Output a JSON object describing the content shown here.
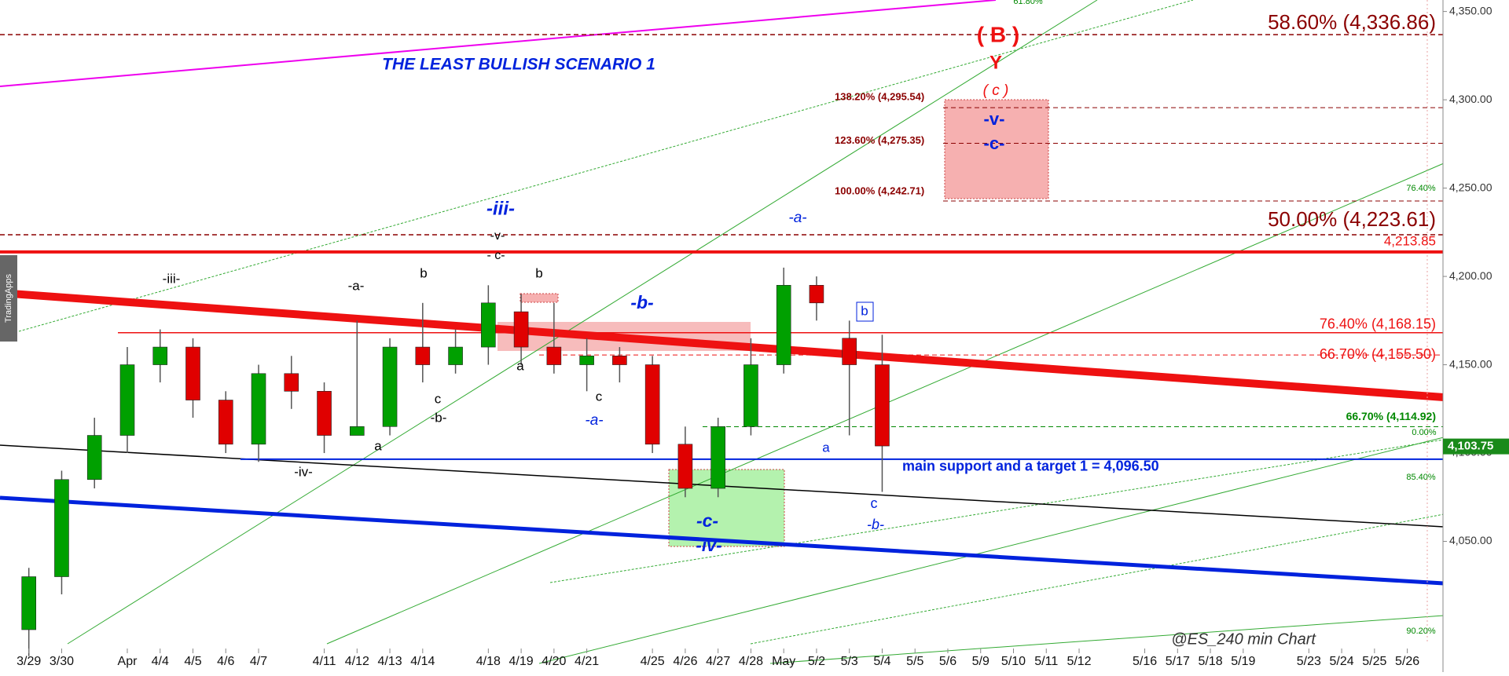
{
  "chart_data": {
    "type": "candlestick",
    "title": "THE LEAST BULLISH SCENARIO 1",
    "source": "@ES_240 min Chart",
    "watermark": "TradingApps",
    "categories": [
      "3/29",
      "3/30",
      null,
      "Apr",
      "4/4",
      "4/5",
      "4/6",
      "4/7",
      null,
      "4/11",
      "4/12",
      "4/13",
      "4/14",
      null,
      "4/18",
      "4/19",
      "4/20",
      "4/21",
      null,
      "4/25",
      "4/26",
      "4/27",
      "4/28",
      "May",
      "5/2",
      "5/3",
      "5/4",
      "5/5",
      "5/6",
      "5/9",
      "5/10",
      "5/11",
      "5/12",
      null,
      "5/16",
      "5/17",
      "5/18",
      "5/19",
      null,
      "5/23",
      "5/24",
      "5/25",
      "5/26"
    ],
    "open": [
      4000,
      4030,
      4085,
      4110,
      4150,
      4160,
      4130,
      4105,
      4145,
      4135,
      4110,
      4115,
      4160,
      4150,
      4160,
      4180,
      4160,
      4150,
      4155,
      4150,
      4105,
      4080,
      4115,
      4150,
      4195,
      4165,
      4150,
      null,
      null,
      null,
      null,
      null,
      null,
      null,
      null,
      null,
      null,
      null,
      null,
      null,
      null,
      null,
      null
    ],
    "high": [
      4035,
      4090,
      4120,
      4160,
      4170,
      4165,
      4135,
      4150,
      4155,
      4140,
      4175,
      4165,
      4185,
      4170,
      4195,
      4190,
      4185,
      4165,
      4160,
      4155,
      4115,
      4120,
      4165,
      4205,
      4200,
      4175,
      4167,
      null,
      null,
      null,
      null,
      null,
      null,
      null,
      null,
      null,
      null,
      null,
      null,
      null,
      null,
      null,
      null
    ],
    "low": [
      3985,
      4020,
      4080,
      4100,
      4140,
      4120,
      4100,
      4095,
      4125,
      4100,
      4110,
      4110,
      4140,
      4145,
      4150,
      4150,
      4145,
      4135,
      4140,
      4100,
      4075,
      4075,
      4110,
      4145,
      4175,
      4110,
      4078,
      null,
      null,
      null,
      null,
      null,
      null,
      null,
      null,
      null,
      null,
      null,
      null,
      null,
      null,
      null,
      null
    ],
    "close": [
      4030,
      4085,
      4110,
      4150,
      4160,
      4130,
      4105,
      4145,
      4135,
      4110,
      4115,
      4160,
      4150,
      4160,
      4185,
      4160,
      4150,
      4155,
      4150,
      4105,
      4080,
      4115,
      4150,
      4195,
      4185,
      4150,
      4104,
      null,
      null,
      null,
      null,
      null,
      null,
      null,
      null,
      null,
      null,
      null,
      null,
      null,
      null,
      null,
      null
    ],
    "up_color": "#00a000",
    "down_color": "#e00000",
    "ylim": [
      3976,
      4356.5
    ],
    "yticks": [
      {
        "value": 4050,
        "label": "4,050.00"
      },
      {
        "value": 4100,
        "label": "4,100.00"
      },
      {
        "value": 4150,
        "label": "4,150.00"
      },
      {
        "value": 4200,
        "label": "4,200.00"
      },
      {
        "value": 4250,
        "label": "4,250.00"
      },
      {
        "value": 4300,
        "label": "4,300.00"
      },
      {
        "value": 4350,
        "label": "4,350.00"
      }
    ],
    "last_price": {
      "value": 4103.75,
      "label": "4,103.75"
    },
    "levels": [
      {
        "value": 4336.86,
        "label": "58.60% (4,336.86)",
        "color": "#8b0000",
        "dash": true
      },
      {
        "value": 4223.61,
        "label": "50.00% (4,223.61)",
        "color": "#8b0000",
        "dash": true
      },
      {
        "value": 4213.85,
        "label": "4,213.85",
        "color": "#ee1111",
        "dash": false
      },
      {
        "value": 4168.15,
        "label": "76.40% (4,168.15)",
        "color": "#ee1111",
        "dash": false
      },
      {
        "value": 4155.5,
        "label": "66.70% (4,155.50)",
        "color": "#ee1111",
        "dash": true
      },
      {
        "value": 4295.54,
        "label": "138.20% (4,295.54)",
        "color": "#8b0000",
        "dash": true
      },
      {
        "value": 4275.35,
        "label": "123.60% (4,275.35)",
        "color": "#8b0000",
        "dash": true
      },
      {
        "value": 4242.71,
        "label": "100.00% (4,242.71)",
        "color": "#8b0000",
        "dash": true
      },
      {
        "value": 4114.92,
        "label": "66.70% (4,114.92)",
        "color": "#008800",
        "dash": true
      },
      {
        "value": 4096.5,
        "label": "main support and a target 1 = 4,096.50",
        "color": "#0022dd",
        "dash": false
      }
    ],
    "annotations": [
      {
        "text": "-iii-",
        "color": "#000000"
      },
      {
        "text": "-a-",
        "color": "#000000"
      },
      {
        "text": "b",
        "color": "#000000"
      },
      {
        "text": "-iii-",
        "color": "#0022dd"
      },
      {
        "text": "-v-",
        "color": "#000000"
      },
      {
        "text": "- c-",
        "color": "#000000"
      },
      {
        "text": "b",
        "color": "#000000"
      },
      {
        "text": "-b-",
        "color": "#0022dd"
      },
      {
        "text": "-a-",
        "color": "#0022dd"
      },
      {
        "text": "( B )",
        "color": "#ee1111"
      },
      {
        "text": "Y",
        "color": "#ee1111"
      },
      {
        "text": "( c )",
        "color": "#ee1111"
      },
      {
        "text": "-v-",
        "color": "#0022dd"
      },
      {
        "text": "-c-",
        "color": "#0022dd"
      },
      {
        "text": "c",
        "color": "#000000"
      },
      {
        "text": "-b-",
        "color": "#000000"
      },
      {
        "text": "a",
        "color": "#000000"
      },
      {
        "text": "-iv-",
        "color": "#000000"
      },
      {
        "text": "a",
        "color": "#000000"
      },
      {
        "text": "c",
        "color": "#000000"
      },
      {
        "text": "-a-",
        "color": "#0022dd"
      },
      {
        "text": "a",
        "color": "#0022dd"
      },
      {
        "text": "b",
        "color": "#0022dd"
      },
      {
        "text": "c",
        "color": "#0022dd"
      },
      {
        "text": "-b-",
        "color": "#0022dd"
      },
      {
        "text": "-c-",
        "color": "#0022dd"
      },
      {
        "text": "-iv-",
        "color": "#0022dd"
      },
      {
        "text": "61.80%",
        "color": "#008800"
      },
      {
        "text": "76.40%",
        "color": "#008800"
      },
      {
        "text": "0.00%",
        "color": "#008800"
      },
      {
        "text": "85.40%",
        "color": "#008800"
      },
      {
        "text": "90.20%",
        "color": "#008800"
      }
    ]
  }
}
